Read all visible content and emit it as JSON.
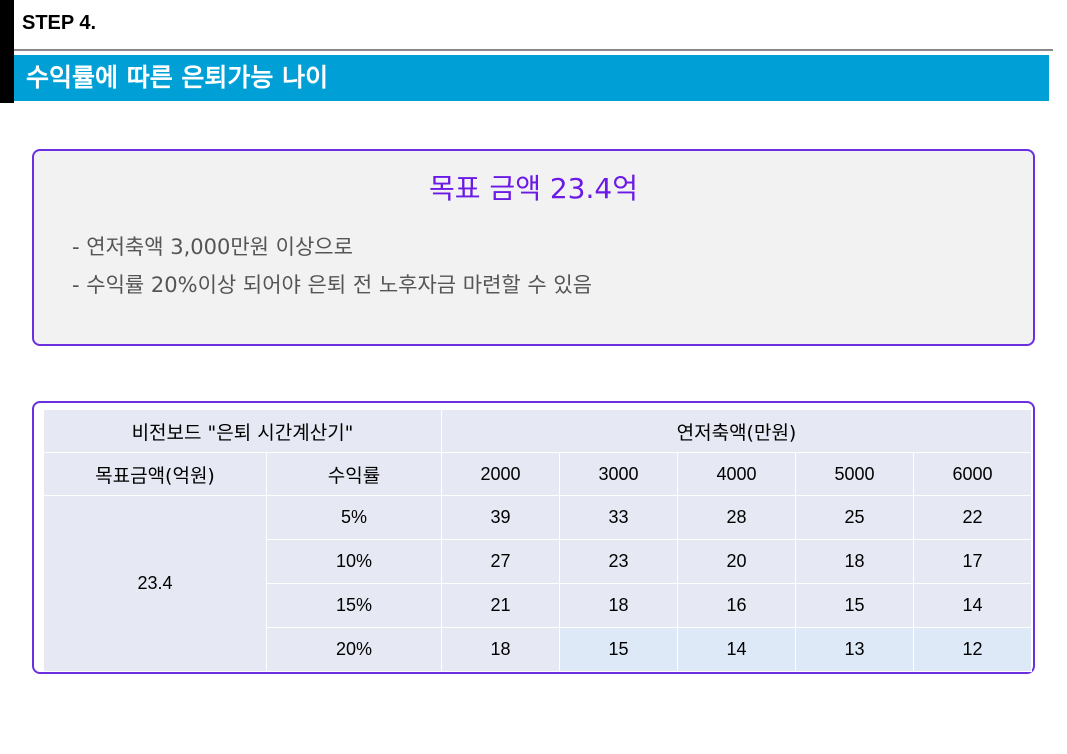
{
  "step_label": "STEP 4.",
  "banner_title": "수익률에 따른 은퇴가능 나이",
  "goal": {
    "title": "목표 금액 23.4억",
    "bullets": [
      "- 연저축액 3,000만원 이상으로",
      "- 수익률 20%이상 되어야 은퇴 전 노후자금 마련할 수 있음"
    ]
  },
  "table": {
    "calc_title": "비전보드 \"은퇴 시간계산기\"",
    "savings_header": "연저축액(만원)",
    "goal_header": "목표금액(억원)",
    "rate_header": "수익률",
    "savings_columns": [
      "2000",
      "3000",
      "4000",
      "5000",
      "6000"
    ],
    "goal_amount": "23.4",
    "rows": [
      {
        "rate": "5%",
        "values": [
          "39",
          "33",
          "28",
          "25",
          "22"
        ]
      },
      {
        "rate": "10%",
        "values": [
          "27",
          "23",
          "20",
          "18",
          "17"
        ]
      },
      {
        "rate": "15%",
        "values": [
          "21",
          "18",
          "16",
          "15",
          "14"
        ]
      },
      {
        "rate": "20%",
        "values": [
          "18",
          "15",
          "14",
          "13",
          "12"
        ]
      }
    ]
  },
  "colors": {
    "banner": "#00a0d6",
    "accent_border": "#6b2fe0",
    "goal_title": "#6a19e6",
    "cell": "#e6e9f3",
    "highlight_cell": "#dde9f7"
  }
}
